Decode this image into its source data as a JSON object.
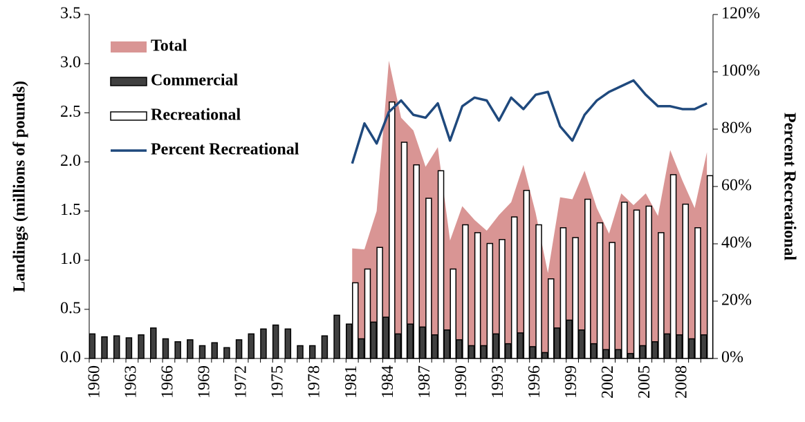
{
  "chart_data": {
    "type": "bar",
    "y_label": "Landings (millions of pounds)",
    "y2_label": "Percent Recreational",
    "categories": [
      "1960",
      null,
      null,
      "1963",
      null,
      null,
      "1966",
      null,
      null,
      "1969",
      null,
      null,
      "1972",
      null,
      null,
      "1975",
      null,
      null,
      "1978",
      null,
      null,
      "1981",
      null,
      null,
      "1984",
      null,
      null,
      "1987",
      null,
      null,
      "1990",
      null,
      null,
      "1993",
      null,
      null,
      "1996",
      null,
      null,
      "1999",
      null,
      null,
      "2002",
      null,
      null,
      "2005",
      null,
      null,
      "2008",
      null,
      null
    ],
    "series": [
      {
        "name": "Total",
        "type": "area",
        "color": "#d99594",
        "values": [
          null,
          null,
          null,
          null,
          null,
          null,
          null,
          null,
          null,
          null,
          null,
          null,
          null,
          null,
          null,
          null,
          null,
          null,
          null,
          null,
          null,
          1.12,
          1.11,
          1.5,
          3.03,
          2.45,
          2.32,
          1.95,
          2.15,
          1.2,
          1.55,
          1.41,
          1.3,
          1.46,
          1.59,
          1.97,
          1.48,
          0.87,
          1.64,
          1.62,
          1.91,
          1.53,
          1.27,
          1.68,
          1.56,
          1.68,
          1.45,
          2.12,
          1.81,
          1.53,
          2.1
        ]
      },
      {
        "name": "Commercial",
        "type": "bar",
        "color": "#404040",
        "edgecolor": "#000000",
        "values": [
          0.25,
          0.22,
          0.23,
          0.21,
          0.24,
          0.31,
          0.2,
          0.17,
          0.19,
          0.13,
          0.16,
          0.11,
          0.19,
          0.25,
          0.3,
          0.34,
          0.3,
          0.13,
          0.13,
          0.23,
          0.44,
          0.35,
          0.2,
          0.37,
          0.42,
          0.25,
          0.35,
          0.32,
          0.24,
          0.29,
          0.19,
          0.13,
          0.13,
          0.25,
          0.15,
          0.26,
          0.12,
          0.06,
          0.31,
          0.39,
          0.29,
          0.15,
          0.09,
          0.09,
          0.05,
          0.13,
          0.17,
          0.25,
          0.24,
          0.2,
          0.24
        ]
      },
      {
        "name": "Recreational",
        "type": "bar",
        "color": "#ffffff",
        "edgecolor": "#000000",
        "values": [
          null,
          null,
          null,
          null,
          null,
          null,
          null,
          null,
          null,
          null,
          null,
          null,
          null,
          null,
          null,
          null,
          null,
          null,
          null,
          null,
          null,
          0.77,
          0.91,
          1.13,
          2.61,
          2.2,
          1.97,
          1.63,
          1.91,
          0.91,
          1.36,
          1.28,
          1.17,
          1.21,
          1.44,
          1.71,
          1.36,
          0.81,
          1.33,
          1.23,
          1.62,
          1.38,
          1.18,
          1.59,
          1.51,
          1.55,
          1.28,
          1.87,
          1.57,
          1.33,
          1.86
        ]
      },
      {
        "name": "Percent Recreational",
        "type": "line",
        "axis": "y2",
        "color": "#1f497d",
        "values": [
          null,
          null,
          null,
          null,
          null,
          null,
          null,
          null,
          null,
          null,
          null,
          null,
          null,
          null,
          null,
          null,
          null,
          null,
          null,
          null,
          null,
          68,
          82,
          75,
          86,
          90,
          85,
          84,
          89,
          76,
          88,
          91,
          90,
          83,
          91,
          87,
          92,
          93,
          81,
          76,
          85,
          90,
          93,
          95,
          97,
          92,
          88,
          88,
          87,
          87,
          89
        ]
      }
    ],
    "ylim": [
      0,
      3.5
    ],
    "yticks": [
      {
        "value": 0,
        "label": "0.0"
      },
      0.5,
      {
        "value": 1,
        "label": "1.0"
      },
      1.5,
      {
        "value": 2,
        "label": "2.0"
      },
      2.5,
      {
        "value": 3,
        "label": "3.0"
      },
      3.5
    ],
    "y2lim": [
      0,
      120
    ],
    "y2ticks": [
      {
        "value": 0,
        "label": "0%"
      },
      {
        "value": 20,
        "label": "20%"
      },
      {
        "value": 40,
        "label": "40%"
      },
      {
        "value": 60,
        "label": "60%"
      },
      {
        "value": 80,
        "label": "80%"
      },
      {
        "value": 100,
        "label": "100%"
      },
      {
        "value": 120,
        "label": "120%"
      }
    ],
    "legend": "upper left",
    "grid": false
  }
}
